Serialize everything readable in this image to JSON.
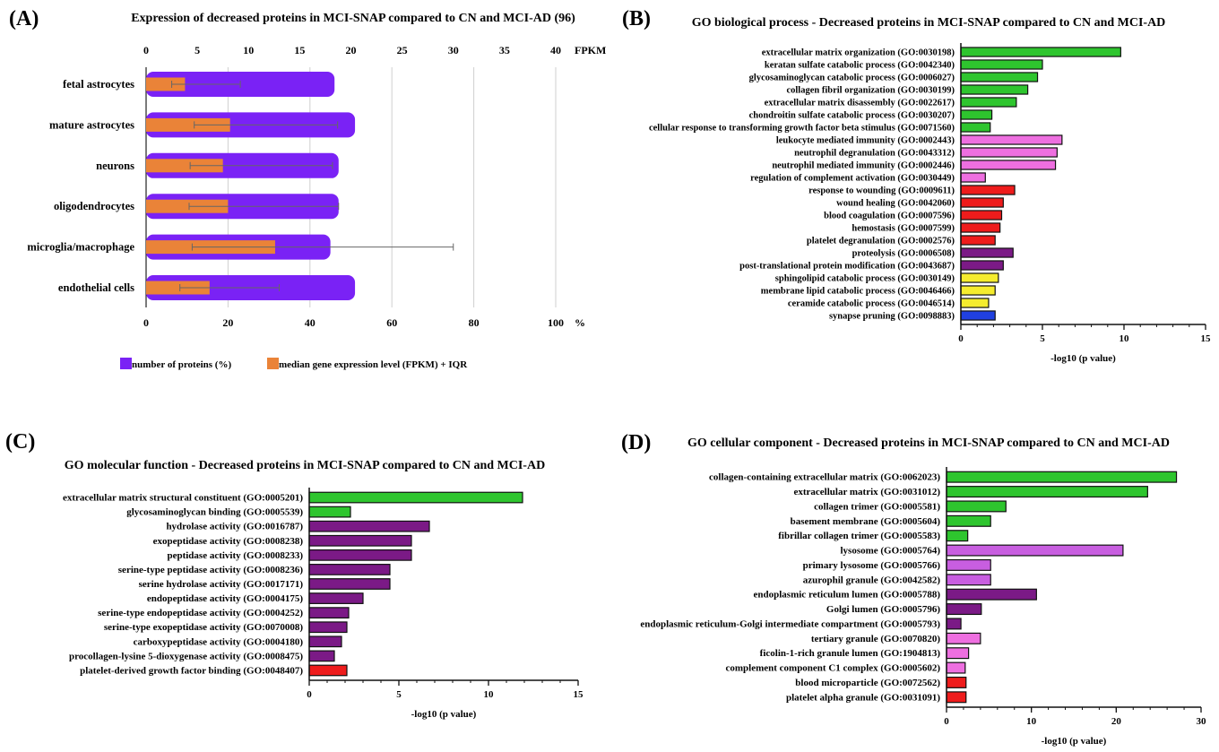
{
  "panels": [
    {
      "id": "A",
      "letter": "(A)",
      "title": "Expression of decreased proteins in MCI-SNAP compared to CN and MCI-AD (96)",
      "chart_data": {
        "type": "bar",
        "orientation": "horizontal",
        "categories": [
          "fetal astrocytes",
          "mature astrocytes",
          "neurons",
          "oligodendrocytes",
          "microglia/macrophage",
          "endothelial cells"
        ],
        "series": [
          {
            "name": "number of proteins (%)",
            "color": "#7a22f5",
            "axis": "bottom",
            "values": [
              46,
              51,
              47,
              47,
              45,
              51
            ]
          },
          {
            "name": "median gene expression level (FPKM) + IQR",
            "color": "#ea8338",
            "axis": "top",
            "values": [
              3.8,
              8.2,
              7.5,
              8.0,
              12.6,
              6.2
            ],
            "iqr_low": [
              2.5,
              4.7,
              4.3,
              4.2,
              4.5,
              3.3
            ],
            "iqr_high": [
              9.2,
              18.7,
              18.2,
              18.8,
              30.0,
              13.0
            ]
          }
        ],
        "top_axis": {
          "label": "FPKM",
          "ticks": [
            0,
            5,
            10,
            15,
            20,
            25,
            30,
            35,
            40
          ],
          "range": [
            0,
            50
          ]
        },
        "bottom_axis": {
          "label": "%",
          "ticks": [
            0,
            20,
            40,
            60,
            80,
            100
          ],
          "range": [
            0,
            100
          ]
        },
        "grid": true,
        "legend": "bottom"
      }
    },
    {
      "id": "B",
      "letter": "(B)",
      "title": "GO biological process - Decreased proteins in MCI-SNAP compared to CN and MCI-AD",
      "chart_data": {
        "type": "bar",
        "orientation": "horizontal",
        "categories": [
          "extracellular matrix organization (GO:0030198)",
          "keratan sulfate catabolic process (GO:0042340)",
          "glycosaminoglycan catabolic process (GO:0006027)",
          "collagen fibril organization (GO:0030199)",
          "extracellular matrix disassembly (GO:0022617)",
          "chondroitin sulfate catabolic process (GO:0030207)",
          "cellular response to transforming growth factor beta stimulus (GO:0071560)",
          "leukocyte mediated immunity (GO:0002443)",
          "neutrophil degranulation (GO:0043312)",
          "neutrophil mediated immunity (GO:0002446)",
          "regulation of complement activation (GO:0030449)",
          "response to wounding (GO:0009611)",
          "wound healing (GO:0042060)",
          "blood coagulation (GO:0007596)",
          "hemostasis (GO:0007599)",
          "platelet degranulation (GO:0002576)",
          "proteolysis (GO:0006508)",
          "post-translational protein modification (GO:0043687)",
          "sphingolipid catabolic process (GO:0030149)",
          "membrane lipid catabolic process (GO:0046466)",
          "ceramide catabolic process (GO:0046514)",
          "synapse pruning (GO:0098883)"
        ],
        "values": [
          9.8,
          5.0,
          4.7,
          4.1,
          3.4,
          1.9,
          1.8,
          6.2,
          5.9,
          5.8,
          1.5,
          3.3,
          2.6,
          2.5,
          2.4,
          2.1,
          3.2,
          2.6,
          2.3,
          2.1,
          1.7,
          2.1
        ],
        "colors": [
          "#2ec52e",
          "#2ec52e",
          "#2ec52e",
          "#2ec52e",
          "#2ec52e",
          "#2ec52e",
          "#2ec52e",
          "#ee6fe0",
          "#ee6fe0",
          "#ee6fe0",
          "#ee6fe0",
          "#ee1c1c",
          "#ee1c1c",
          "#ee1c1c",
          "#ee1c1c",
          "#ee1c1c",
          "#7b1a86",
          "#7b1a86",
          "#f5ec2e",
          "#f5ec2e",
          "#f5ec2e",
          "#2040e0"
        ],
        "xlabel": "-log10 (p value)",
        "xticks": [
          0,
          5,
          10,
          15
        ],
        "xlim": [
          0,
          15
        ]
      }
    },
    {
      "id": "C",
      "letter": "(C)",
      "title": "GO molecular function - Decreased proteins in MCI-SNAP compared to CN and MCI-AD",
      "chart_data": {
        "type": "bar",
        "orientation": "horizontal",
        "categories": [
          "extracellular matrix structural constituent (GO:0005201)",
          "glycosaminoglycan binding (GO:0005539)",
          "hydrolase activity (GO:0016787)",
          "exopeptidase activity (GO:0008238)",
          "peptidase activity (GO:0008233)",
          "serine-type peptidase activity (GO:0008236)",
          "serine hydrolase activity (GO:0017171)",
          "endopeptidase activity (GO:0004175)",
          "serine-type endopeptidase activity (GO:0004252)",
          "serine-type exopeptidase activity (GO:0070008)",
          "carboxypeptidase activity (GO:0004180)",
          "procollagen-lysine 5-dioxygenase activity (GO:0008475)",
          "platelet-derived growth factor binding (GO:0048407)"
        ],
        "values": [
          11.9,
          2.3,
          6.7,
          5.7,
          5.7,
          4.5,
          4.5,
          3.0,
          2.2,
          2.1,
          1.8,
          1.4,
          2.1
        ],
        "colors": [
          "#2ec52e",
          "#2ec52e",
          "#7b1a86",
          "#7b1a86",
          "#7b1a86",
          "#7b1a86",
          "#7b1a86",
          "#7b1a86",
          "#7b1a86",
          "#7b1a86",
          "#7b1a86",
          "#7b1a86",
          "#ee1c1c"
        ],
        "xlabel": "-log10 (p value)",
        "xticks": [
          0,
          5,
          10,
          15
        ],
        "xlim": [
          0,
          15
        ]
      }
    },
    {
      "id": "D",
      "letter": "(D)",
      "title": "GO cellular component - Decreased proteins in MCI-SNAP compared to CN and MCI-AD",
      "chart_data": {
        "type": "bar",
        "orientation": "horizontal",
        "categories": [
          "collagen-containing extracellular matrix (GO:0062023)",
          "extracellular matrix (GO:0031012)",
          "collagen trimer (GO:0005581)",
          "basement membrane (GO:0005604)",
          "fibrillar collagen trimer (GO:0005583)",
          "lysosome (GO:0005764)",
          "primary lysosome (GO:0005766)",
          "azurophil granule (GO:0042582)",
          "endoplasmic reticulum lumen (GO:0005788)",
          "Golgi lumen (GO:0005796)",
          "endoplasmic reticulum-Golgi intermediate compartment (GO:0005793)",
          "tertiary granule (GO:0070820)",
          "ficolin-1-rich granule lumen (GO:1904813)",
          "complement component C1 complex (GO:0005602)",
          "blood microparticle (GO:0072562)",
          "platelet alpha granule (GO:0031091)"
        ],
        "values": [
          27.1,
          23.7,
          7.0,
          5.2,
          2.5,
          20.8,
          5.2,
          5.2,
          10.6,
          4.1,
          1.7,
          4.0,
          2.6,
          2.2,
          2.3,
          2.3
        ],
        "colors": [
          "#2ec52e",
          "#2ec52e",
          "#2ec52e",
          "#2ec52e",
          "#2ec52e",
          "#c85ee0",
          "#c85ee0",
          "#c85ee0",
          "#7b1a86",
          "#7b1a86",
          "#7b1a86",
          "#ee6fe0",
          "#ee6fe0",
          "#ee6fe0",
          "#ee1c1c",
          "#ee1c1c"
        ],
        "xlabel": "-log10 (p value)",
        "xticks": [
          0,
          10,
          20,
          30
        ],
        "xlim": [
          0,
          30
        ]
      }
    }
  ]
}
